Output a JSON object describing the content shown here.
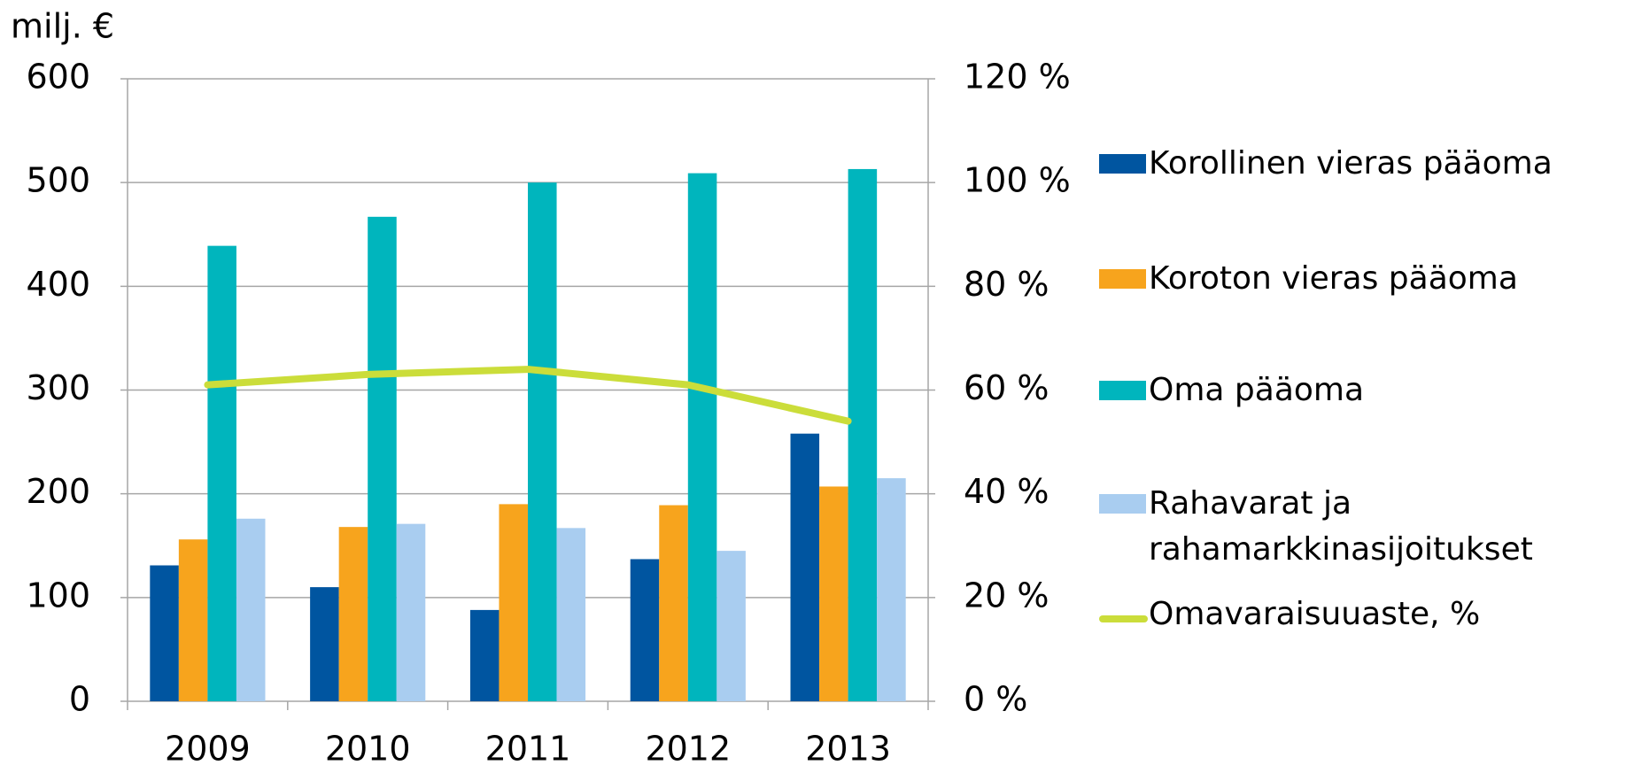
{
  "chart_data": {
    "type": "bar",
    "y_label": "milj. €",
    "categories": [
      "2009",
      "2010",
      "2011",
      "2012",
      "2013"
    ],
    "series": [
      {
        "name": "Korollinen vieras pääoma",
        "color": "#0055a0",
        "values": [
          131,
          110,
          88,
          137,
          258
        ]
      },
      {
        "name": "Koroton vieras pääoma",
        "color": "#f7a41d",
        "values": [
          156,
          168,
          190,
          189,
          207
        ]
      },
      {
        "name": "Oma pääoma",
        "color": "#00b5bd",
        "values": [
          439,
          467,
          500,
          509,
          513
        ]
      },
      {
        "name": "Rahavarat ja rahamarkkinasijoitukset",
        "color": "#a9cdf0",
        "values": [
          176,
          171,
          167,
          145,
          215
        ]
      },
      {
        "name": "Omavaraisuuaste, %",
        "color": "#cbdd3a",
        "type": "line",
        "axis": "y2",
        "values": [
          61,
          63,
          64,
          61,
          54
        ]
      }
    ],
    "ylim": [
      0,
      600
    ],
    "yticks": [
      0,
      100,
      200,
      300,
      400,
      500,
      600
    ],
    "y2lim": [
      0,
      120
    ],
    "y2ticks": [
      {
        "value": 0,
        "label": "0 %"
      },
      {
        "value": 20,
        "label": "20 %"
      },
      {
        "value": 40,
        "label": "40 %"
      },
      {
        "value": 60,
        "label": "60 %"
      },
      {
        "value": 80,
        "label": "80 %"
      },
      {
        "value": 100,
        "label": "100 %"
      },
      {
        "value": 120,
        "label": "120 %"
      }
    ],
    "grid": true,
    "legend": "right"
  }
}
